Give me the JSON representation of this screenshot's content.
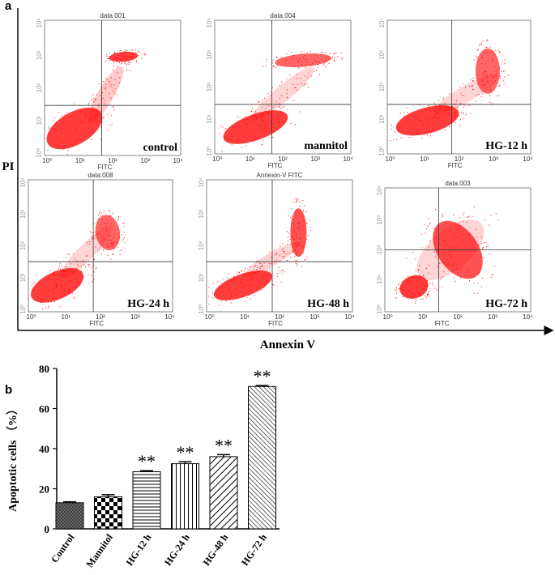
{
  "panel_labels": {
    "a": "a",
    "b": "b"
  },
  "flow_plots": {
    "y_label": "PI",
    "x_label": "Annexin V",
    "tick_labels": [
      "10⁰",
      "10¹",
      "10²",
      "10³",
      "10⁴"
    ],
    "plots": [
      {
        "title": "data.001",
        "label": "control",
        "x_label": "FITC"
      },
      {
        "title": "data.004",
        "label": "mannitol",
        "x_label": "FITC"
      },
      {
        "label": "HG-12 h",
        "x_label": "FITC"
      },
      {
        "title": "data.008",
        "label": "HG-24 h",
        "x_label": "FITC"
      },
      {
        "title": "Annexin-V FITC",
        "label": "HG-48 h",
        "x_label": "FITC"
      },
      {
        "title": "data.003",
        "label": "HG-72 h",
        "x_label": "FITC"
      }
    ]
  },
  "chart_data": {
    "type": "bar",
    "y_label": "Apoptotic cells （%）",
    "categories": [
      "Control",
      "Mannitol",
      "HG-12 h",
      "HG-24 h",
      "HG-48 h",
      "HG-72 h"
    ],
    "values": [
      13,
      16,
      28.5,
      32.5,
      36,
      71
    ],
    "errors": [
      0.5,
      1,
      0.5,
      1,
      1,
      0.5
    ],
    "annotations": [
      null,
      null,
      "**",
      "**",
      "**",
      "**"
    ],
    "color": "#000000",
    "ylim": [
      0,
      80
    ],
    "yticks": [
      0,
      20,
      40,
      60,
      80
    ]
  }
}
